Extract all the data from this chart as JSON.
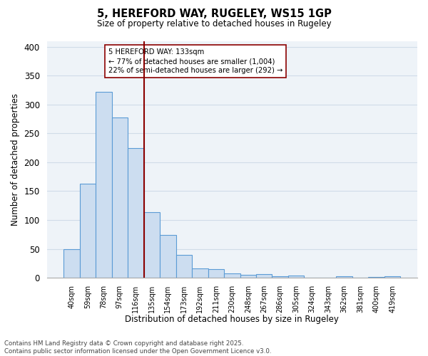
{
  "title": "5, HEREFORD WAY, RUGELEY, WS15 1GP",
  "subtitle": "Size of property relative to detached houses in Rugeley",
  "xlabel": "Distribution of detached houses by size in Rugeley",
  "ylabel": "Number of detached properties",
  "bar_labels": [
    "40sqm",
    "59sqm",
    "78sqm",
    "97sqm",
    "116sqm",
    "135sqm",
    "154sqm",
    "173sqm",
    "192sqm",
    "211sqm",
    "230sqm",
    "248sqm",
    "267sqm",
    "286sqm",
    "305sqm",
    "324sqm",
    "343sqm",
    "362sqm",
    "381sqm",
    "400sqm",
    "419sqm"
  ],
  "bar_values": [
    49,
    163,
    322,
    278,
    225,
    113,
    74,
    40,
    16,
    15,
    8,
    5,
    6,
    3,
    4,
    0,
    0,
    3,
    0,
    2,
    3
  ],
  "bar_color": "#ccddf0",
  "bar_edge_color": "#5b9bd5",
  "vline_color": "#8b0000",
  "annotation_text": "5 HEREFORD WAY: 133sqm\n← 77% of detached houses are smaller (1,004)\n22% of semi-detached houses are larger (292) →",
  "annotation_box_color": "white",
  "annotation_box_edge_color": "#8b0000",
  "ylim": [
    0,
    410
  ],
  "yticks": [
    0,
    50,
    100,
    150,
    200,
    250,
    300,
    350,
    400
  ],
  "footer_line1": "Contains HM Land Registry data © Crown copyright and database right 2025.",
  "footer_line2": "Contains public sector information licensed under the Open Government Licence v3.0.",
  "grid_color": "#d0dce8",
  "background_color": "#eef3f8",
  "vline_bar_index": 5
}
